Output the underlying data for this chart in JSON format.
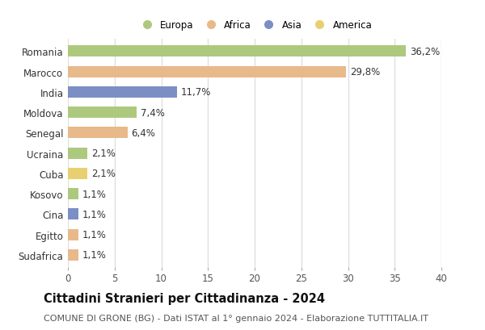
{
  "categories": [
    "Romania",
    "Marocco",
    "India",
    "Moldova",
    "Senegal",
    "Ucraina",
    "Cuba",
    "Kosovo",
    "Cina",
    "Egitto",
    "Sudafrica"
  ],
  "values": [
    36.2,
    29.8,
    11.7,
    7.4,
    6.4,
    2.1,
    2.1,
    1.1,
    1.1,
    1.1,
    1.1
  ],
  "labels": [
    "36,2%",
    "29,8%",
    "11,7%",
    "7,4%",
    "6,4%",
    "2,1%",
    "2,1%",
    "1,1%",
    "1,1%",
    "1,1%",
    "1,1%"
  ],
  "colors": [
    "#adc97e",
    "#e8b98a",
    "#7b8fc4",
    "#adc97e",
    "#e8b98a",
    "#adc97e",
    "#e8d070",
    "#adc97e",
    "#7b8fc4",
    "#e8b98a",
    "#e8b98a"
  ],
  "legend": [
    {
      "label": "Europa",
      "color": "#adc97e"
    },
    {
      "label": "Africa",
      "color": "#e8b98a"
    },
    {
      "label": "Asia",
      "color": "#7b8fc4"
    },
    {
      "label": "America",
      "color": "#e8d070"
    }
  ],
  "xlim": [
    0,
    40
  ],
  "xticks": [
    0,
    5,
    10,
    15,
    20,
    25,
    30,
    35,
    40
  ],
  "title": "Cittadini Stranieri per Cittadinanza - 2024",
  "subtitle": "COMUNE DI GRONE (BG) - Dati ISTAT al 1° gennaio 2024 - Elaborazione TUTTITALIA.IT",
  "bg_color": "#ffffff",
  "plot_bg_color": "#ffffff",
  "grid_color": "#e0e0e0",
  "bar_height": 0.55,
  "label_fontsize": 8.5,
  "tick_fontsize": 8.5,
  "title_fontsize": 10.5,
  "subtitle_fontsize": 8.0
}
